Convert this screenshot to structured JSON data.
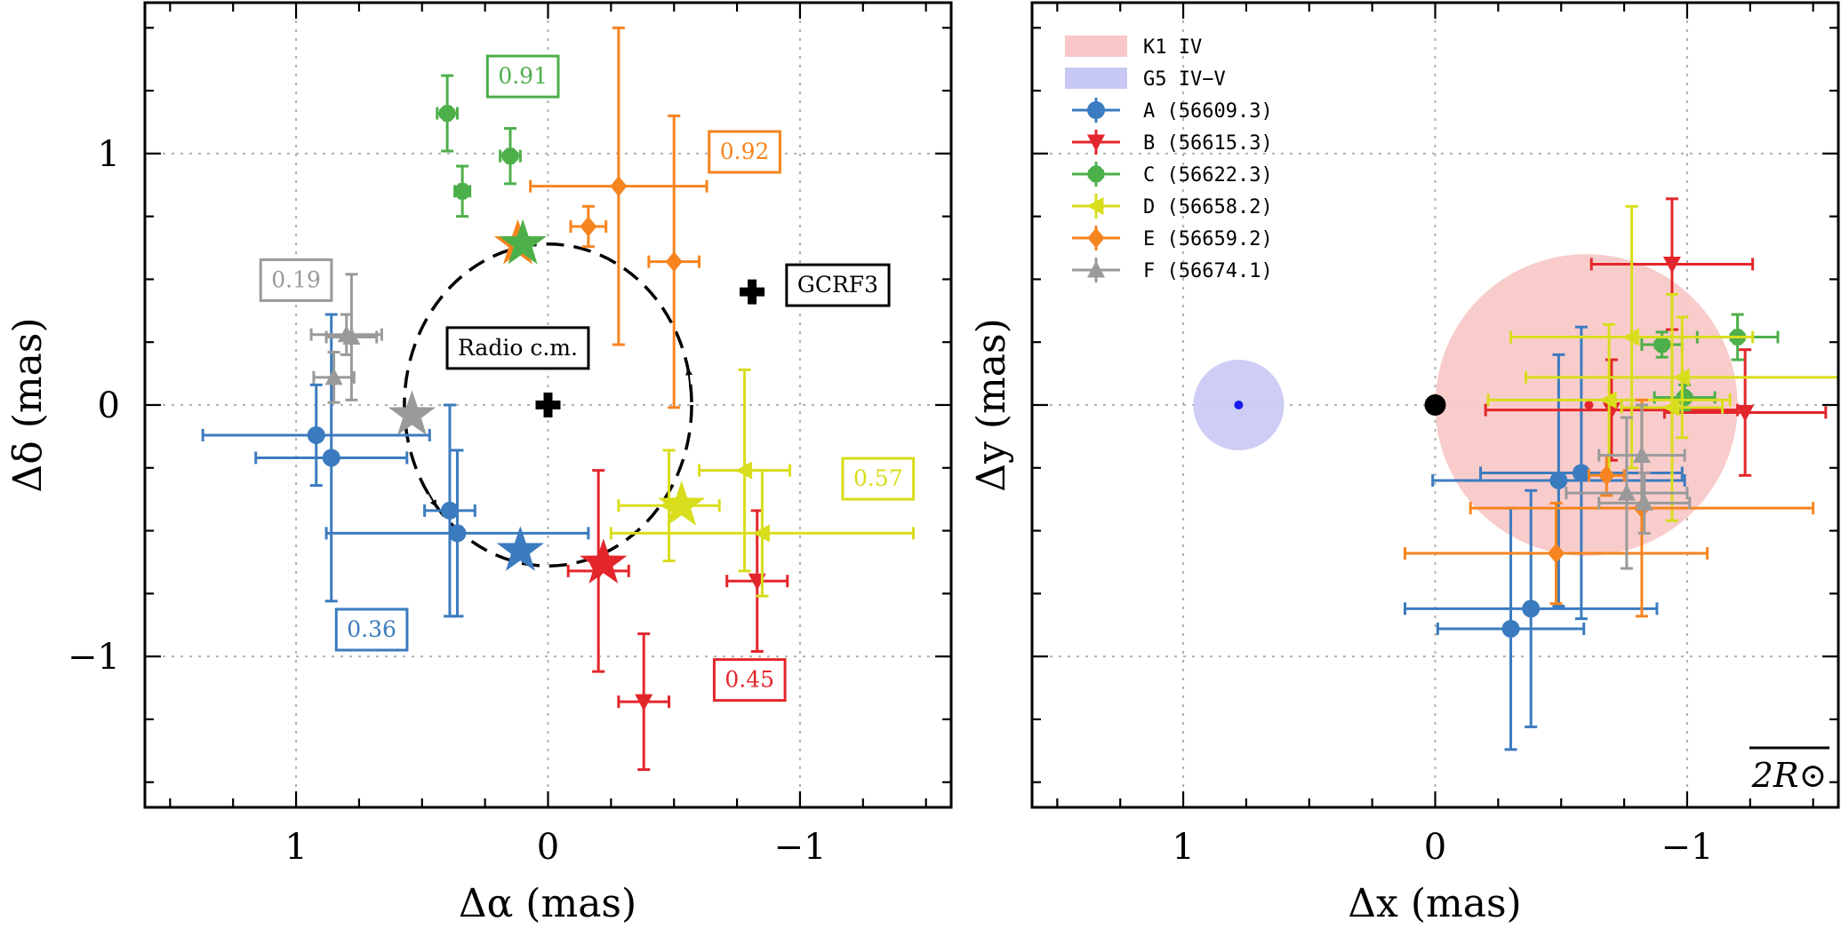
{
  "colors": {
    "A": "#3b7bbf",
    "B": "#e3262b",
    "C": "#4daf4a",
    "D": "#d8dd1c",
    "E": "#f6841f",
    "F": "#9a9a9a",
    "K1": "#f8c6c6",
    "G5": "#c8c8f4",
    "G5_dot": "#1a1aee",
    "K1_dot": "#e3262b"
  },
  "chart_data": [
    {
      "type": "scatter",
      "xlabel": "Δα (mas)",
      "ylabel": "Δδ (mas)",
      "xlim": [
        1.6,
        -1.6
      ],
      "ylim": [
        -1.6,
        1.6
      ],
      "x_inverted": true,
      "xticks": [
        1,
        0,
        -1
      ],
      "xtick_labels": [
        "1",
        "0",
        "−1"
      ],
      "yticks": [
        -1,
        0,
        1
      ],
      "ytick_labels": [
        "−1",
        "0",
        "1"
      ],
      "grid": true,
      "series": [
        {
          "key": "A",
          "points": [
            {
              "x": 0.92,
              "y": -0.12,
              "xerr": 0.45,
              "yerr": 0.2
            },
            {
              "x": 0.86,
              "y": -0.21,
              "xerr": 0.3,
              "yerr": 0.57
            },
            {
              "x": 0.39,
              "y": -0.42,
              "xerr": 0.1,
              "yerr": 0.42
            },
            {
              "x": 0.36,
              "y": -0.51,
              "xerr": 0.52,
              "yerr": 0.33
            }
          ]
        },
        {
          "key": "B",
          "points": [
            {
              "x": -0.38,
              "y": -1.18,
              "xerr": 0.1,
              "yerr": 0.27
            },
            {
              "x": -0.83,
              "y": -0.7,
              "xerr": 0.12,
              "yerr": 0.28
            },
            {
              "x": -0.2,
              "y": -0.66,
              "xerr": 0.12,
              "yerr": 0.4
            }
          ]
        },
        {
          "key": "C",
          "points": [
            {
              "x": 0.4,
              "y": 1.16,
              "xerr": 0.04,
              "yerr": 0.15
            },
            {
              "x": 0.34,
              "y": 0.85,
              "xerr": 0.03,
              "yerr": 0.1
            },
            {
              "x": 0.15,
              "y": 0.99,
              "xerr": 0.04,
              "yerr": 0.11
            }
          ]
        },
        {
          "key": "D",
          "points": [
            {
              "x": -0.78,
              "y": -0.26,
              "xerr": 0.18,
              "yerr": 0.4
            },
            {
              "x": -0.85,
              "y": -0.51,
              "xerr": 0.6,
              "yerr": 0.25
            },
            {
              "x": -0.48,
              "y": -0.4,
              "xerr": 0.2,
              "yerr": 0.22
            }
          ]
        },
        {
          "key": "E",
          "points": [
            {
              "x": -0.28,
              "y": 0.87,
              "xerr": 0.35,
              "yerr": 0.63
            },
            {
              "x": -0.16,
              "y": 0.71,
              "xerr": 0.07,
              "yerr": 0.08
            },
            {
              "x": -0.5,
              "y": 0.57,
              "xerr": 0.1,
              "yerr": 0.58
            }
          ]
        },
        {
          "key": "F",
          "points": [
            {
              "x": 0.85,
              "y": 0.11,
              "xerr": 0.08,
              "yerr": 0.1
            },
            {
              "x": 0.78,
              "y": 0.27,
              "xerr": 0.1,
              "yerr": 0.25
            },
            {
              "x": 0.8,
              "y": 0.28,
              "xerr": 0.14,
              "yerr": 0.08
            }
          ]
        }
      ],
      "stars": [
        {
          "key": "E",
          "x": 0.12,
          "y": 0.64
        },
        {
          "key": "C",
          "x": 0.1,
          "y": 0.64
        },
        {
          "key": "F",
          "x": 0.54,
          "y": -0.04
        },
        {
          "key": "A",
          "x": 0.11,
          "y": -0.58
        },
        {
          "key": "B",
          "x": -0.22,
          "y": -0.63
        },
        {
          "key": "D",
          "x": -0.53,
          "y": -0.4
        }
      ],
      "crosses": [
        {
          "x": 0,
          "y": 0
        },
        {
          "x": -0.81,
          "y": 0.45
        }
      ],
      "orbit": {
        "center_x": 0.0,
        "center_y": 0.0,
        "radius_x": 0.57,
        "radius_y": 0.64
      },
      "annotations": [
        {
          "text": "0.91",
          "key": "C",
          "x": 0.1,
          "y": 1.31
        },
        {
          "text": "0.92",
          "key": "E",
          "x": -0.78,
          "y": 1.01
        },
        {
          "text": "0.19",
          "key": "F",
          "x": 1.0,
          "y": 0.5
        },
        {
          "text": "0.57",
          "key": "D",
          "x": -1.31,
          "y": -0.29
        },
        {
          "text": "0.36",
          "key": "A",
          "x": 0.7,
          "y": -0.89
        },
        {
          "text": "0.45",
          "key": "B",
          "x": -0.8,
          "y": -1.09
        },
        {
          "text": "Radio c.m.",
          "key": "black",
          "x": 0.12,
          "y": 0.23
        },
        {
          "text": "GCRF3",
          "key": "black",
          "x": -1.15,
          "y": 0.48
        }
      ]
    },
    {
      "type": "scatter",
      "xlabel": "Δx (mas)",
      "ylabel": "Δy (mas)",
      "xlim": [
        1.6,
        -1.6
      ],
      "ylim": [
        -1.6,
        1.6
      ],
      "x_inverted": true,
      "xticks": [
        1,
        0,
        -1
      ],
      "xtick_labels": [
        "1",
        "0",
        "−1"
      ],
      "yticks": [
        -1,
        0,
        1
      ],
      "grid": true,
      "legend": {
        "placement": "top-left",
        "entries": [
          {
            "key": "K1",
            "marker": "patch",
            "label": "K1 IV"
          },
          {
            "key": "G5",
            "marker": "patch",
            "label": "G5 IV−V"
          },
          {
            "key": "A",
            "marker": "circle",
            "label": "A (56609.3)"
          },
          {
            "key": "B",
            "marker": "triangle-down",
            "label": "B (56615.3)"
          },
          {
            "key": "C",
            "marker": "octagon",
            "label": "C (56622.3)"
          },
          {
            "key": "D",
            "marker": "triangle-left",
            "label": "D (56658.2)"
          },
          {
            "key": "E",
            "marker": "diamond",
            "label": "E (56659.2)"
          },
          {
            "key": "F",
            "marker": "triangle-up",
            "label": "F (56674.1)"
          }
        ]
      },
      "discs": [
        {
          "key": "K1",
          "x": -0.6,
          "y": 0.0,
          "radius": 0.6
        },
        {
          "key": "G5",
          "x": 0.78,
          "y": 0.0,
          "radius": 0.18
        }
      ],
      "center_dots": [
        {
          "key": "G5_dot",
          "x": 0.78,
          "y": 0.0
        },
        {
          "key": "K1_dot",
          "x": -0.61,
          "y": 0.0
        }
      ],
      "origin_marker": {
        "x": 0,
        "y": 0
      },
      "series": [
        {
          "key": "A",
          "points": [
            {
              "x": -0.49,
              "y": -0.3,
              "xerr": 0.5,
              "yerr": 0.5
            },
            {
              "x": -0.58,
              "y": -0.27,
              "xerr": 0.4,
              "yerr": 0.58
            },
            {
              "x": -0.38,
              "y": -0.81,
              "xerr": 0.5,
              "yerr": 0.47
            },
            {
              "x": -0.3,
              "y": -0.89,
              "xerr": 0.29,
              "yerr": 0.48
            }
          ]
        },
        {
          "key": "B",
          "points": [
            {
              "x": -0.94,
              "y": 0.56,
              "xerr": 0.32,
              "yerr": 0.26
            },
            {
              "x": -0.7,
              "y": -0.02,
              "xerr": 0.5,
              "yerr": 0.2
            },
            {
              "x": -1.23,
              "y": -0.03,
              "xerr": 0.32,
              "yerr": 0.25
            }
          ]
        },
        {
          "key": "C",
          "points": [
            {
              "x": -0.9,
              "y": 0.24,
              "xerr": 0.08,
              "yerr": 0.05
            },
            {
              "x": -1.2,
              "y": 0.27,
              "xerr": 0.16,
              "yerr": 0.09
            },
            {
              "x": -0.99,
              "y": 0.03,
              "xerr": 0.12,
              "yerr": 0.05
            }
          ]
        },
        {
          "key": "D",
          "points": [
            {
              "x": -0.78,
              "y": 0.27,
              "xerr": 0.48,
              "yerr": 0.52
            },
            {
              "x": -0.98,
              "y": 0.11,
              "xerr": 0.62,
              "yerr": 0.24
            },
            {
              "x": -0.69,
              "y": 0.02,
              "xerr": 0.48,
              "yerr": 0.3
            },
            {
              "x": -0.94,
              "y": -0.01,
              "xerr": 0.2,
              "yerr": 0.45
            }
          ]
        },
        {
          "key": "E",
          "points": [
            {
              "x": -0.68,
              "y": -0.28,
              "xerr": 0.07,
              "yerr": 0.08
            },
            {
              "x": -0.82,
              "y": -0.41,
              "xerr": 0.68,
              "yerr": 0.43
            },
            {
              "x": -0.48,
              "y": -0.59,
              "xerr": 0.6,
              "yerr": 0.2
            }
          ]
        },
        {
          "key": "F",
          "points": [
            {
              "x": -0.82,
              "y": -0.2,
              "xerr": 0.17,
              "yerr": 0.2
            },
            {
              "x": -0.76,
              "y": -0.35,
              "xerr": 0.24,
              "yerr": 0.3
            },
            {
              "x": -0.83,
              "y": -0.39,
              "xerr": 0.18,
              "yerr": 0.12
            }
          ]
        }
      ],
      "scale_label": "2R⊙"
    }
  ]
}
